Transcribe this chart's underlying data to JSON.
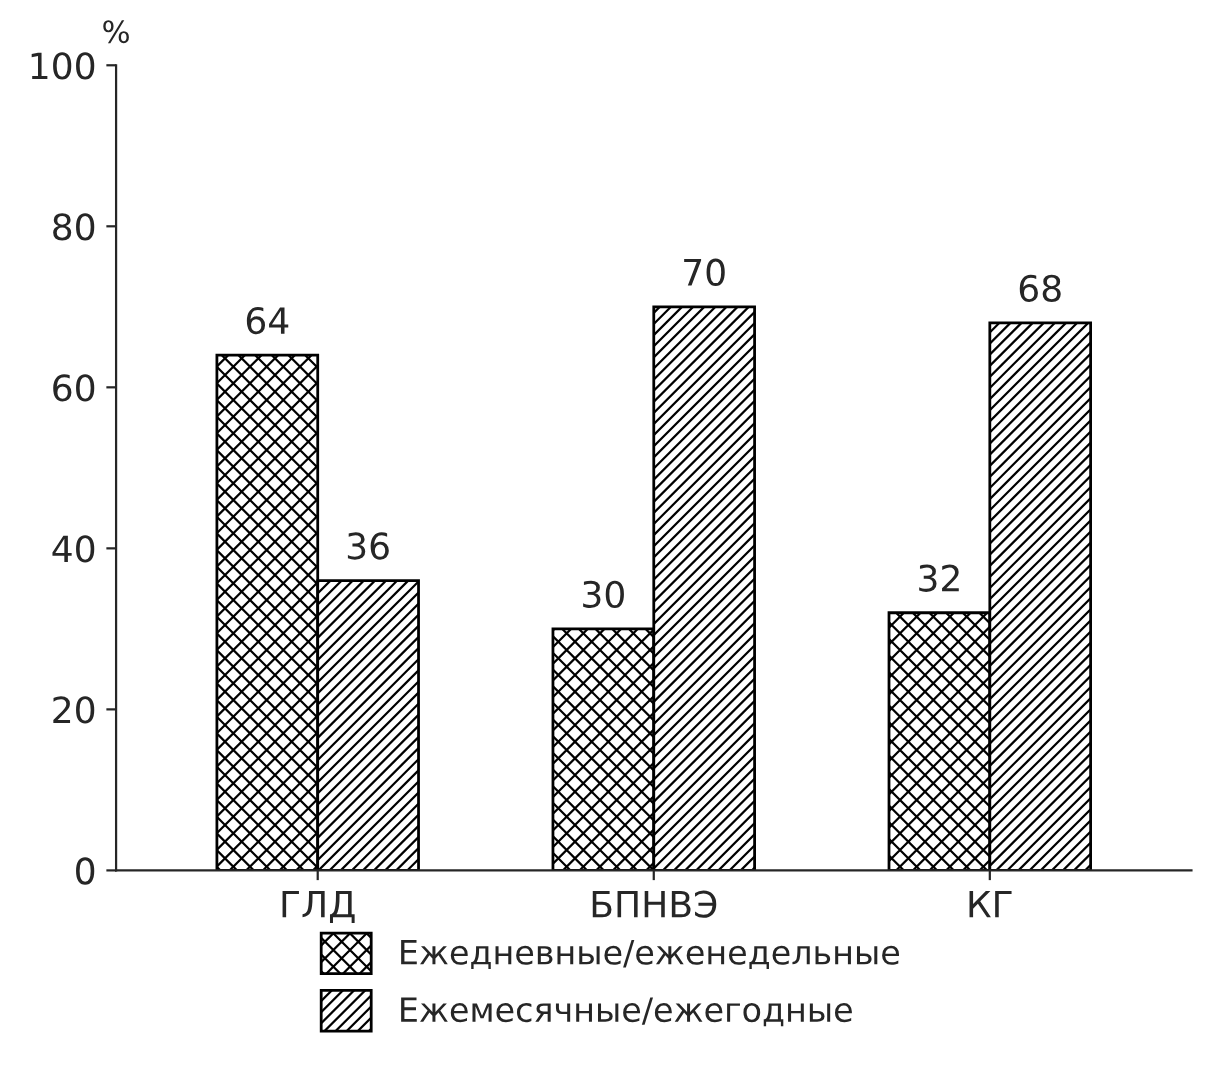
{
  "chart_data": {
    "type": "bar",
    "ylabel": "%",
    "categories": [
      "ГЛД",
      "БПНВЭ",
      "КГ"
    ],
    "series": [
      {
        "name": "Ежедневные/еженедельные",
        "color": "#000000",
        "values": [
          64,
          30,
          32
        ]
      },
      {
        "name": "Ежемесячные/ежегодные",
        "color": "#000000",
        "values": [
          36,
          70,
          68
        ]
      }
    ],
    "ylim": [
      0,
      100
    ],
    "yticks": [
      0,
      20,
      40,
      60,
      80,
      100
    ],
    "data_labels": true,
    "legend": "bottom",
    "grid": false
  }
}
